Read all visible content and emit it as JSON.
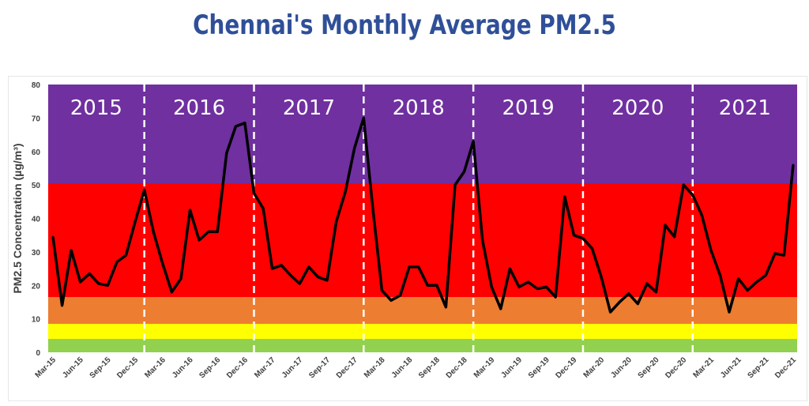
{
  "chart_data": {
    "type": "line",
    "title": "Chennai's Monthly Average PM2.5",
    "ylabel": "PM2.5 Concentration (µg/m³)",
    "xlabel": "",
    "ylim": [
      0,
      80
    ],
    "yticks": [
      0,
      10,
      20,
      30,
      40,
      50,
      60,
      70,
      80
    ],
    "bands": [
      {
        "from": 0,
        "to": 4,
        "color": "#92d050"
      },
      {
        "from": 4,
        "to": 8.5,
        "color": "#ffff00"
      },
      {
        "from": 8.5,
        "to": 16.5,
        "color": "#ed7d31"
      },
      {
        "from": 16.5,
        "to": 50.5,
        "color": "#ff0000"
      },
      {
        "from": 50.5,
        "to": 80,
        "color": "#7030a0"
      }
    ],
    "years": [
      "2015",
      "2016",
      "2017",
      "2018",
      "2019",
      "2020",
      "2021"
    ],
    "x_tick_labels": [
      "Mar-15",
      "Jun-15",
      "Sep-15",
      "Dec-15",
      "Mar-16",
      "Jun-16",
      "Sep-16",
      "Dec-16",
      "Mar-17",
      "Jun-17",
      "Sep-17",
      "Dec-17",
      "Mar-18",
      "Jun-18",
      "Sep-18",
      "Dec-18",
      "Mar-19",
      "Jun-19",
      "Sep-19",
      "Dec-19",
      "Mar-20",
      "Jun-20",
      "Sep-20",
      "Dec-20",
      "Mar-21",
      "Jun-21",
      "Sep-21",
      "Dec-21"
    ],
    "start_month": "Mar-15",
    "line_color": "#000000",
    "series": [
      {
        "values": [
          34.5,
          14,
          30.5,
          21,
          23.5,
          20.5,
          20,
          27,
          29,
          39,
          48.5,
          36,
          26.5,
          18,
          22,
          42.5,
          33.5,
          36,
          36,
          59.5,
          67.5,
          68.5,
          47.5,
          43,
          25,
          26,
          23,
          20.5,
          25.5,
          22.5,
          21.5,
          39,
          48,
          61,
          70,
          43,
          18.5,
          15.5,
          17,
          25.5,
          25.5,
          20,
          20,
          13.5,
          50,
          54,
          63,
          33.5,
          19.5,
          13,
          25,
          19.5,
          21,
          19,
          19.5,
          16.5,
          46.5,
          35,
          34,
          31,
          22.5,
          12,
          15,
          17.5,
          14.5,
          20.5,
          18,
          38,
          34.5,
          50,
          47,
          41,
          30.5,
          23,
          12,
          22,
          18.5,
          21,
          23,
          29.5,
          29,
          56
        ]
      }
    ]
  }
}
